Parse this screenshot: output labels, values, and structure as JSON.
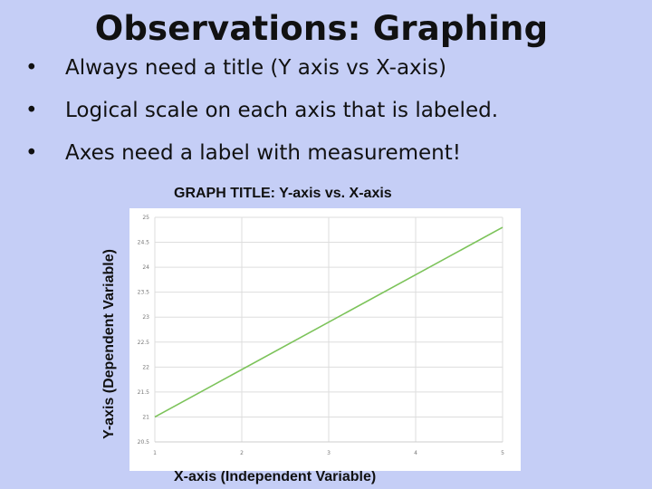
{
  "slide": {
    "title": "Observations: Graphing",
    "bullets": [
      "Always need a title (Y axis vs X-axis)",
      "Logical scale on each axis that is labeled.",
      "Axes need a label with measurement!"
    ]
  },
  "colors": {
    "background": "#c5cef6",
    "line": "#7cc35a",
    "grid": "#dddddd"
  },
  "chart_data": {
    "type": "line",
    "title": "GRAPH TITLE: Y-axis vs. X-axis",
    "xlabel": "X-axis (Independent Variable)",
    "ylabel": "Y-axis (Dependent Variable)",
    "xlim": [
      1,
      5
    ],
    "ylim": [
      20.5,
      25
    ],
    "x_ticks": [
      "1",
      "2",
      "3",
      "4",
      "5"
    ],
    "y_ticks": [
      "20.5",
      "21",
      "21.5",
      "22",
      "22.5",
      "23",
      "23.5",
      "24",
      "24.5",
      "25"
    ],
    "grid": true,
    "series": [
      {
        "x": [
          1,
          5
        ],
        "y": [
          21,
          24.8
        ]
      }
    ]
  }
}
